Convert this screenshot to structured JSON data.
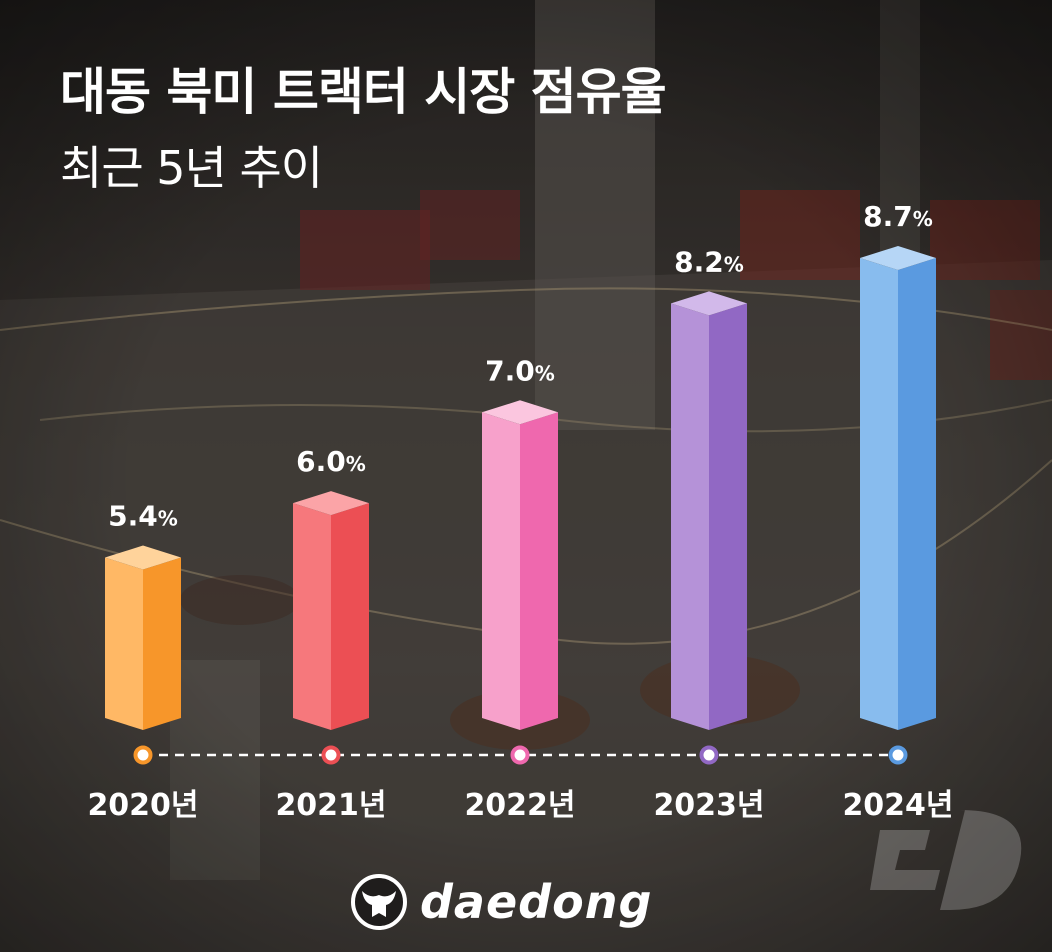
{
  "header": {
    "title": "대동 북미 트랙터 시장 점유율",
    "subtitle": "최근 5년 추이"
  },
  "brand": {
    "logo_text": "daedong"
  },
  "colors": {
    "background": "#3a3633",
    "text": "#ffffff",
    "timeline": "#ffffff"
  },
  "chart_data": {
    "type": "bar",
    "title": "대동 북미 트랙터 시장 점유율",
    "subtitle": "최근 5년 추이",
    "categories": [
      "2020년",
      "2021년",
      "2022년",
      "2023년",
      "2024년"
    ],
    "values": [
      5.4,
      6.0,
      7.0,
      8.2,
      8.7
    ],
    "labels": [
      "5.4",
      "6.0",
      "7.0",
      "8.2",
      "8.7"
    ],
    "unit": "%",
    "ylim": [
      3.5,
      8.7
    ],
    "grid": false,
    "legend": "none",
    "bar_colors": [
      {
        "light": "#ffb865",
        "dark": "#f7962a",
        "top": "#ffd39b",
        "dot": "#f7962a"
      },
      {
        "light": "#f6787c",
        "dark": "#ec4f54",
        "top": "#fba4a7",
        "dot": "#ec4f54"
      },
      {
        "light": "#f7a1cb",
        "dark": "#ef68ae",
        "top": "#fbc6df",
        "dot": "#ef68ae"
      },
      {
        "light": "#b592d8",
        "dark": "#9168c4",
        "top": "#d2b9ea",
        "dot": "#9168c4"
      },
      {
        "light": "#88bcee",
        "dark": "#5a9ae0",
        "top": "#b6d6f6",
        "dot": "#5a9ae0"
      }
    ]
  }
}
